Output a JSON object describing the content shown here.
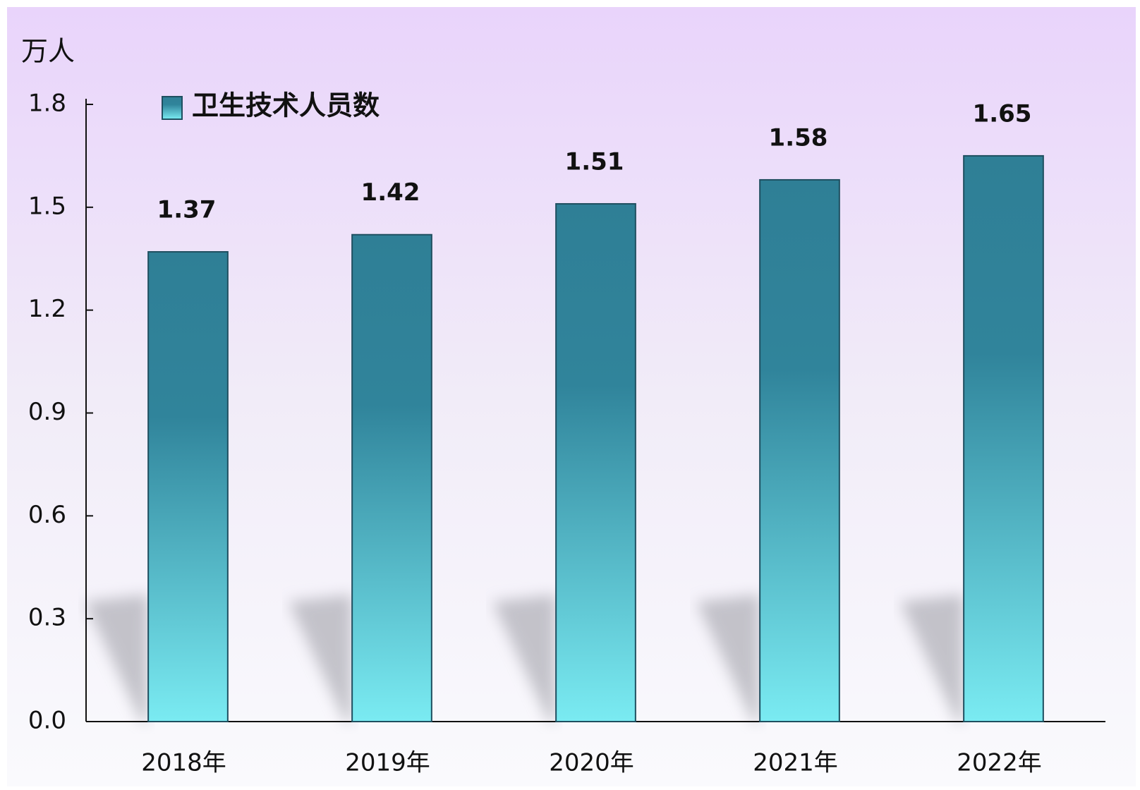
{
  "chart_data": {
    "type": "bar",
    "unit_label": "万人",
    "categories": [
      "2018年",
      "2019年",
      "2020年",
      "2021年",
      "2022年"
    ],
    "series": [
      {
        "name": "卫生技术人员数",
        "color": "#2f8299",
        "values": [
          1.37,
          1.42,
          1.51,
          1.58,
          1.65
        ]
      }
    ],
    "ylim": [
      0,
      1.8
    ],
    "yticks": [
      {
        "value": 0,
        "label": "0.0"
      },
      0.3,
      0.6,
      0.9,
      1.2,
      1.5,
      1.8
    ],
    "legend": "top-left",
    "grid": false
  }
}
